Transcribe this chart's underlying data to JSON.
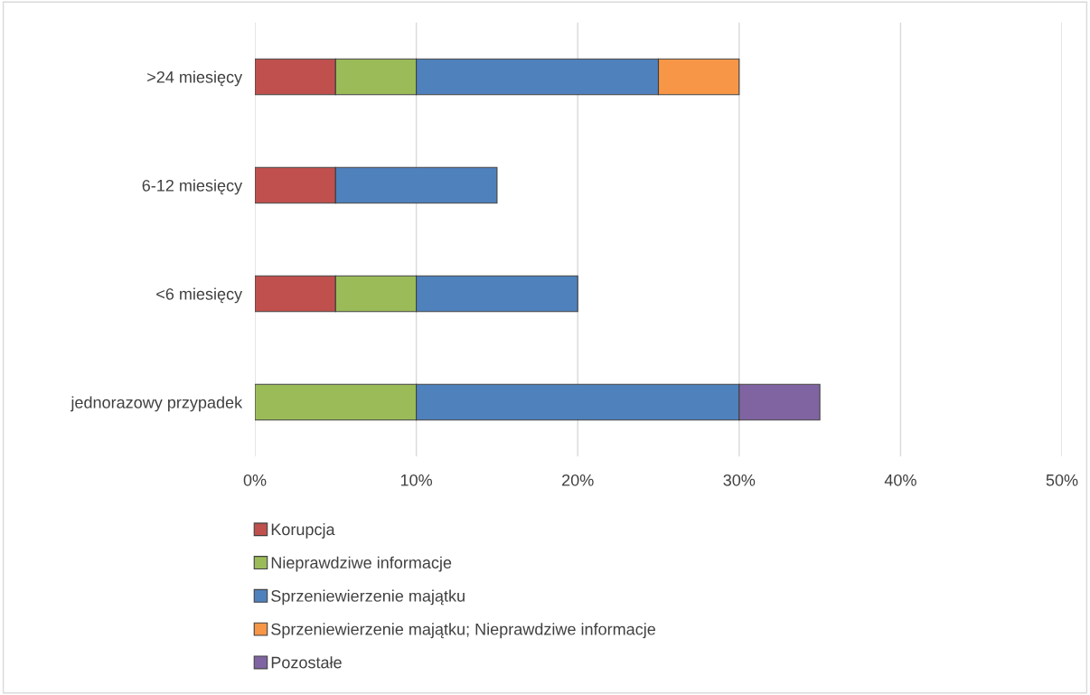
{
  "chart_data": {
    "type": "bar",
    "orientation": "horizontal",
    "stacked": true,
    "categories": [
      ">24 miesięcy",
      "6-12 miesięcy",
      "<6 miesięcy",
      "jednorazowy przypadek"
    ],
    "series": [
      {
        "name": "Korupcja",
        "color": "#c0504d",
        "values": [
          5,
          5,
          5,
          null
        ]
      },
      {
        "name": "Nieprawdziwe informacje",
        "color": "#9bbb59",
        "values": [
          5,
          null,
          5,
          10
        ]
      },
      {
        "name": "Sprzeniewierzenie majątku",
        "color": "#4f81bd",
        "values": [
          15,
          10,
          10,
          20
        ]
      },
      {
        "name": "Sprzeniewierzenie majątku; Nieprawdziwe informacje",
        "color": "#f79646",
        "values": [
          5,
          null,
          null,
          null
        ]
      },
      {
        "name": "Pozostałe",
        "color": "#8064a2",
        "values": [
          null,
          null,
          null,
          5
        ]
      }
    ],
    "xlim": [
      0,
      50
    ],
    "xticks": [
      {
        "value": 0,
        "label": "0%"
      },
      {
        "value": 10,
        "label": "10%"
      },
      {
        "value": 20,
        "label": "20%"
      },
      {
        "value": 30,
        "label": "30%"
      },
      {
        "value": 40,
        "label": "40%"
      },
      {
        "value": 50,
        "label": "50%"
      }
    ],
    "grid": "x",
    "legend": "bottom"
  }
}
